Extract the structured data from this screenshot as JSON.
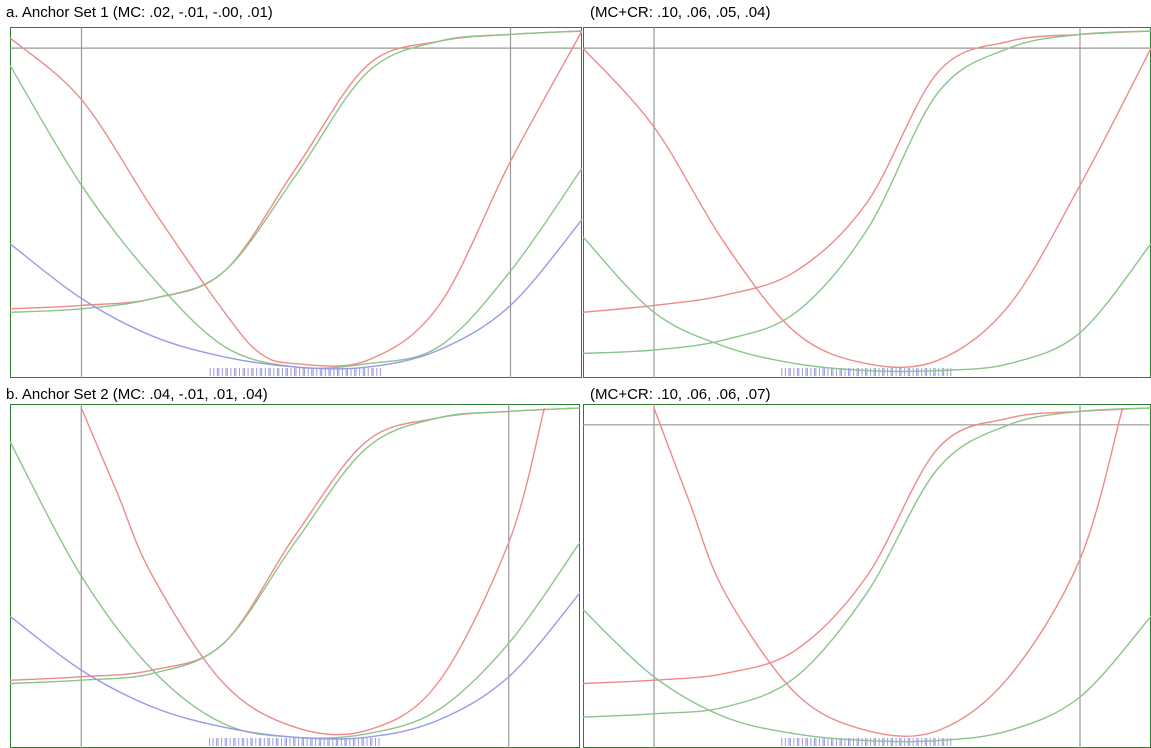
{
  "captions": {
    "a_left": "a. Anchor Set 1 (MC: .02, -.01, -.00, .01)",
    "a_right": "(MC+CR: .10, .06, .05, .04)",
    "b_left": "b. Anchor Set 2 (MC: .04, -.01, .01, .04)",
    "b_right": "(MC+CR: .10, .06, .06, .07)"
  },
  "colors": {
    "red": "#ef8a8a",
    "green": "#8cc48c",
    "blue": "#9a9ae6",
    "brown": "#b09a6a",
    "ref_line": "#999999",
    "frame_green": "#2e7d32"
  },
  "chart_data": [
    {
      "type": "line",
      "title": "a. Anchor Set 1 (MC: .02, -.01, -.00, .01)",
      "xlim": [
        -4,
        4
      ],
      "ylim": [
        0,
        1
      ],
      "vlines": [
        -3,
        3
      ],
      "hline": 0.95,
      "series": [
        {
          "color": "red",
          "values": [
            [
              -4,
              0.19
            ],
            [
              -3,
              0.2
            ],
            [
              -2,
              0.22
            ],
            [
              -1,
              0.3
            ],
            [
              0,
              0.6
            ],
            [
              1,
              0.9
            ],
            [
              2,
              0.97
            ],
            [
              3,
              0.99
            ],
            [
              4,
              1.0
            ]
          ]
        },
        {
          "color": "green",
          "values": [
            [
              -4,
              0.18
            ],
            [
              -3,
              0.19
            ],
            [
              -2,
              0.22
            ],
            [
              -1,
              0.3
            ],
            [
              0,
              0.58
            ],
            [
              1,
              0.88
            ],
            [
              2,
              0.97
            ],
            [
              3,
              0.99
            ],
            [
              4,
              1.0
            ]
          ]
        },
        {
          "color": "red",
          "values": [
            [
              -4,
              0.98
            ],
            [
              -3,
              0.8
            ],
            [
              -2,
              0.48
            ],
            [
              -1,
              0.18
            ],
            [
              -0.5,
              0.06
            ],
            [
              0,
              0.03
            ],
            [
              1,
              0.04
            ],
            [
              2,
              0.2
            ],
            [
              3,
              0.62
            ],
            [
              4,
              1.0
            ]
          ]
        },
        {
          "color": "green",
          "values": [
            [
              -4,
              0.9
            ],
            [
              -3,
              0.55
            ],
            [
              -2,
              0.28
            ],
            [
              -1,
              0.08
            ],
            [
              0,
              0.02
            ],
            [
              1,
              0.03
            ],
            [
              2,
              0.08
            ],
            [
              3,
              0.3
            ],
            [
              4,
              0.6
            ]
          ]
        },
        {
          "color": "blue",
          "values": [
            [
              -4,
              0.38
            ],
            [
              -3,
              0.22
            ],
            [
              -2,
              0.11
            ],
            [
              -1,
              0.05
            ],
            [
              0,
              0.02
            ],
            [
              1,
              0.02
            ],
            [
              2,
              0.07
            ],
            [
              3,
              0.2
            ],
            [
              4,
              0.45
            ]
          ]
        }
      ]
    },
    {
      "type": "line",
      "title": "(MC+CR: .10, .06, .05, .04)",
      "xlim": [
        -4,
        4
      ],
      "ylim": [
        0,
        1
      ],
      "vlines": [
        -3,
        3
      ],
      "hline": 0.95,
      "series": [
        {
          "color": "red",
          "values": [
            [
              -4,
              0.18
            ],
            [
              -3,
              0.2
            ],
            [
              -2,
              0.23
            ],
            [
              -1,
              0.3
            ],
            [
              0,
              0.5
            ],
            [
              1,
              0.88
            ],
            [
              2,
              0.97
            ],
            [
              3,
              0.99
            ],
            [
              4,
              1.0
            ]
          ]
        },
        {
          "color": "green",
          "values": [
            [
              -4,
              0.06
            ],
            [
              -3,
              0.07
            ],
            [
              -2,
              0.1
            ],
            [
              -1,
              0.18
            ],
            [
              0,
              0.42
            ],
            [
              1,
              0.82
            ],
            [
              2,
              0.95
            ],
            [
              3,
              0.99
            ],
            [
              4,
              1.0
            ]
          ]
        },
        {
          "color": "red",
          "values": [
            [
              -4,
              0.95
            ],
            [
              -3,
              0.72
            ],
            [
              -2,
              0.38
            ],
            [
              -1,
              0.12
            ],
            [
              0,
              0.03
            ],
            [
              1,
              0.04
            ],
            [
              2,
              0.2
            ],
            [
              3,
              0.55
            ],
            [
              4,
              0.95
            ]
          ]
        },
        {
          "color": "green",
          "values": [
            [
              -4,
              0.4
            ],
            [
              -3,
              0.18
            ],
            [
              -2,
              0.08
            ],
            [
              -1,
              0.03
            ],
            [
              0,
              0.01
            ],
            [
              1,
              0.01
            ],
            [
              2,
              0.03
            ],
            [
              3,
              0.12
            ],
            [
              4,
              0.38
            ]
          ]
        }
      ]
    },
    {
      "type": "line",
      "title": "b. Anchor Set 2 (MC: .04, -.01, .01, .04)",
      "xlim": [
        -4,
        4
      ],
      "ylim": [
        0,
        1
      ],
      "vlines": [
        -3,
        3
      ],
      "series": [
        {
          "color": "red",
          "values": [
            [
              -4,
              0.19
            ],
            [
              -3,
              0.2
            ],
            [
              -2,
              0.22
            ],
            [
              -1,
              0.3
            ],
            [
              0,
              0.62
            ],
            [
              1,
              0.9
            ],
            [
              2,
              0.97
            ],
            [
              3,
              0.99
            ],
            [
              4,
              1.0
            ]
          ]
        },
        {
          "color": "green",
          "values": [
            [
              -4,
              0.18
            ],
            [
              -3,
              0.19
            ],
            [
              -2,
              0.21
            ],
            [
              -1,
              0.3
            ],
            [
              0,
              0.6
            ],
            [
              1,
              0.88
            ],
            [
              2,
              0.97
            ],
            [
              3,
              0.99
            ],
            [
              4,
              1.0
            ]
          ]
        },
        {
          "color": "red",
          "values": [
            [
              -3,
              1.0
            ],
            [
              -2.5,
              0.75
            ],
            [
              -2,
              0.5
            ],
            [
              -1,
              0.18
            ],
            [
              0,
              0.05
            ],
            [
              1,
              0.04
            ],
            [
              2,
              0.18
            ],
            [
              3,
              0.6
            ],
            [
              3.5,
              1.0
            ]
          ]
        },
        {
          "color": "green",
          "values": [
            [
              -4,
              0.9
            ],
            [
              -3,
              0.5
            ],
            [
              -2,
              0.22
            ],
            [
              -1,
              0.06
            ],
            [
              0,
              0.02
            ],
            [
              1,
              0.03
            ],
            [
              2,
              0.1
            ],
            [
              3,
              0.3
            ],
            [
              4,
              0.6
            ]
          ]
        },
        {
          "color": "blue",
          "values": [
            [
              -4,
              0.38
            ],
            [
              -3,
              0.22
            ],
            [
              -2,
              0.11
            ],
            [
              -1,
              0.05
            ],
            [
              0,
              0.02
            ],
            [
              1,
              0.02
            ],
            [
              2,
              0.07
            ],
            [
              3,
              0.2
            ],
            [
              4,
              0.45
            ]
          ]
        }
      ]
    },
    {
      "type": "line",
      "title": "(MC+CR: .10, .06, .06, .07)",
      "xlim": [
        -4,
        4
      ],
      "ylim": [
        0,
        1
      ],
      "vlines": [
        -3,
        3
      ],
      "hline": 0.95,
      "series": [
        {
          "color": "red",
          "values": [
            [
              -4,
              0.18
            ],
            [
              -3,
              0.19
            ],
            [
              -2,
              0.21
            ],
            [
              -1,
              0.28
            ],
            [
              0,
              0.5
            ],
            [
              1,
              0.88
            ],
            [
              2,
              0.97
            ],
            [
              3,
              0.99
            ],
            [
              4,
              1.0
            ]
          ]
        },
        {
          "color": "green",
          "values": [
            [
              -4,
              0.08
            ],
            [
              -3,
              0.09
            ],
            [
              -2,
              0.11
            ],
            [
              -1,
              0.2
            ],
            [
              0,
              0.45
            ],
            [
              1,
              0.82
            ],
            [
              2,
              0.95
            ],
            [
              3,
              0.99
            ],
            [
              4,
              1.0
            ]
          ]
        },
        {
          "color": "red",
          "values": [
            [
              -3,
              1.0
            ],
            [
              -2.5,
              0.72
            ],
            [
              -2,
              0.45
            ],
            [
              -1,
              0.15
            ],
            [
              0,
              0.04
            ],
            [
              1,
              0.04
            ],
            [
              2,
              0.2
            ],
            [
              3,
              0.55
            ],
            [
              3.6,
              1.0
            ]
          ]
        },
        {
          "color": "green",
          "values": [
            [
              -4,
              0.4
            ],
            [
              -3,
              0.2
            ],
            [
              -2,
              0.08
            ],
            [
              -1,
              0.03
            ],
            [
              0,
              0.01
            ],
            [
              1,
              0.01
            ],
            [
              2,
              0.04
            ],
            [
              3,
              0.14
            ],
            [
              4,
              0.38
            ]
          ]
        }
      ]
    }
  ]
}
